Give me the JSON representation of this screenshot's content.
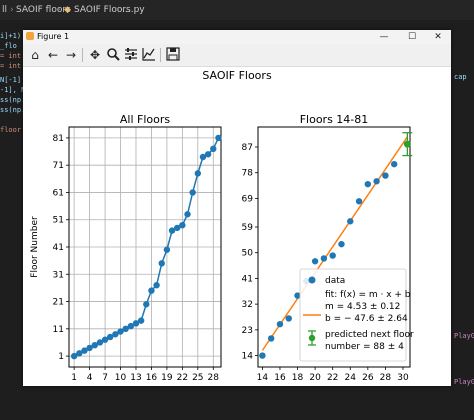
{
  "ide": {
    "breadcrumb": [
      "ll",
      "SAOIF floors",
      "SAOIF Floors.py",
      "..."
    ],
    "code_fragments": [
      "i]+1)",
      "_flo",
      "= int",
      "= int",
      "N[-1]",
      "-1], N",
      "ss(np.",
      "ss(np.",
      "floor"
    ],
    "right_fragments": [
      "cap",
      "PlayG",
      "PlayG"
    ]
  },
  "window": {
    "title": "Figure 1",
    "controls": {
      "minimize": "—",
      "maximize": "☐",
      "close": "✕"
    },
    "toolbar_icons": [
      "home-icon",
      "back-arrow-icon",
      "forward-arrow-icon",
      "pan-icon",
      "zoom-icon",
      "configure-subplots-icon",
      "edit-axis-icon",
      "save-icon"
    ]
  },
  "figure": {
    "suptitle": "SAOIF Floors"
  },
  "chart_data": [
    {
      "type": "line",
      "title": "All Floors",
      "xlabel": "",
      "ylabel": "Floor Number",
      "xlim": [
        0,
        29.5
      ],
      "ylim": [
        -3,
        85
      ],
      "xticks": [
        1,
        4,
        7,
        10,
        13,
        16,
        19,
        22,
        25,
        28
      ],
      "yticks": [
        1,
        11,
        21,
        31,
        41,
        51,
        61,
        71,
        81
      ],
      "grid": true,
      "color": "#1f77b4",
      "x": [
        1,
        2,
        3,
        4,
        5,
        6,
        7,
        8,
        9,
        10,
        11,
        12,
        13,
        14,
        15,
        16,
        17,
        18,
        19,
        20,
        21,
        22,
        23,
        24,
        25,
        26,
        27,
        28,
        29
      ],
      "y": [
        1,
        2,
        3,
        4,
        5,
        6,
        7,
        8,
        9,
        10,
        11,
        12,
        13,
        14,
        20,
        25,
        27,
        35,
        40,
        47,
        48,
        49,
        53,
        61,
        68,
        74,
        75,
        77,
        81
      ]
    },
    {
      "type": "scatter",
      "title": "Floors 14-81",
      "xlim": [
        13.5,
        30.8
      ],
      "ylim": [
        10,
        94
      ],
      "xticks": [
        14,
        16,
        18,
        20,
        22,
        24,
        26,
        28,
        30
      ],
      "yticks": [
        14,
        23,
        32,
        41,
        50,
        59,
        69,
        78,
        87
      ],
      "grid": false,
      "series": [
        {
          "name": "data",
          "color": "#1f77b4",
          "x": [
            14,
            15,
            16,
            17,
            18,
            19,
            20,
            21,
            22,
            23,
            24,
            25,
            26,
            27,
            28,
            29
          ],
          "y": [
            14,
            20,
            25,
            27,
            35,
            40,
            47,
            48,
            49,
            53,
            61,
            68,
            74,
            75,
            77,
            81
          ]
        },
        {
          "name": "fit",
          "color": "#ff7f0e",
          "slope": 4.53,
          "intercept": -47.6,
          "x_range": [
            14,
            30.5
          ]
        },
        {
          "name": "predicted next floor",
          "color": "#2ca02c",
          "x": [
            30.5
          ],
          "y": [
            88
          ],
          "yerr": 4
        }
      ],
      "legend": {
        "placement": "lower-right",
        "data_label": "data",
        "fit_lines": [
          "fit: f(x) = m · x + b",
          "m = 4.53 ± 0.12",
          "b = − 47.6 ± 2.64"
        ],
        "pred_lines": [
          "predicted next floor",
          "number = 88 ± 4"
        ]
      }
    }
  ]
}
